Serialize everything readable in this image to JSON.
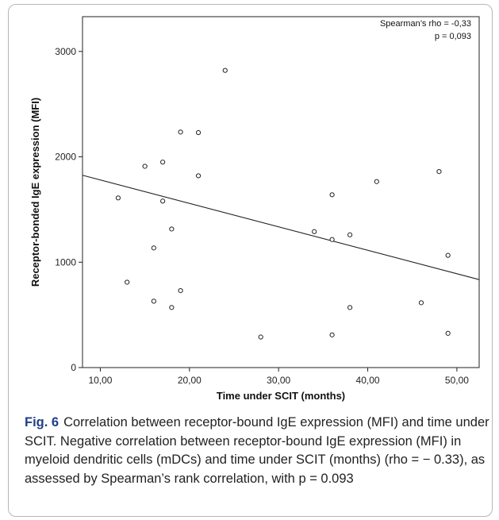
{
  "chart_data": {
    "type": "scatter",
    "xlabel": "Time under SCIT (months)",
    "ylabel": "Receptor-bonded IgE expression (MFI)",
    "xlim": [
      8.0,
      52.5
    ],
    "ylim": [
      0,
      3330
    ],
    "xticks": [
      {
        "value": 10,
        "label": "10,00"
      },
      {
        "value": 20,
        "label": "20,00"
      },
      {
        "value": 30,
        "label": "30,00"
      },
      {
        "value": 40,
        "label": "40,00"
      },
      {
        "value": 50,
        "label": "50,00"
      }
    ],
    "yticks": [
      {
        "value": 0,
        "label": "0"
      },
      {
        "value": 1000,
        "label": "1000"
      },
      {
        "value": 2000,
        "label": "2000"
      },
      {
        "value": 3000,
        "label": "3000"
      }
    ],
    "points": [
      {
        "x": 12,
        "y": 1610
      },
      {
        "x": 13,
        "y": 810
      },
      {
        "x": 15,
        "y": 1910
      },
      {
        "x": 16,
        "y": 1135
      },
      {
        "x": 16,
        "y": 630
      },
      {
        "x": 17,
        "y": 1950
      },
      {
        "x": 17,
        "y": 1580
      },
      {
        "x": 18,
        "y": 1315
      },
      {
        "x": 18,
        "y": 570
      },
      {
        "x": 19,
        "y": 2235
      },
      {
        "x": 19,
        "y": 730
      },
      {
        "x": 21,
        "y": 2230
      },
      {
        "x": 21,
        "y": 1820
      },
      {
        "x": 24,
        "y": 2820
      },
      {
        "x": 28,
        "y": 290
      },
      {
        "x": 34,
        "y": 1290
      },
      {
        "x": 36,
        "y": 1640
      },
      {
        "x": 36,
        "y": 1215
      },
      {
        "x": 36,
        "y": 310
      },
      {
        "x": 38,
        "y": 1260
      },
      {
        "x": 38,
        "y": 570
      },
      {
        "x": 41,
        "y": 1765
      },
      {
        "x": 46,
        "y": 615
      },
      {
        "x": 48,
        "y": 1860
      },
      {
        "x": 49,
        "y": 1065
      },
      {
        "x": 49,
        "y": 325
      }
    ],
    "fit_line": [
      {
        "x": 8.0,
        "y": 1825
      },
      {
        "x": 52.5,
        "y": 835
      }
    ],
    "annotation_lines": [
      "Spearman’s rho = -0,33",
      "p = 0,093"
    ],
    "grid": false
  },
  "caption": {
    "label": "Fig. 6",
    "text": "Correlation between receptor-bound IgE expression (MFI) and time under SCIT. Negative correlation between receptor-bound IgE expression (MFI) in myeloid dendritic cells (mDCs) and time under SCIT (months) (rho = − 0.33), as assessed by Spearman’s rank correlation, with p = 0.093"
  }
}
